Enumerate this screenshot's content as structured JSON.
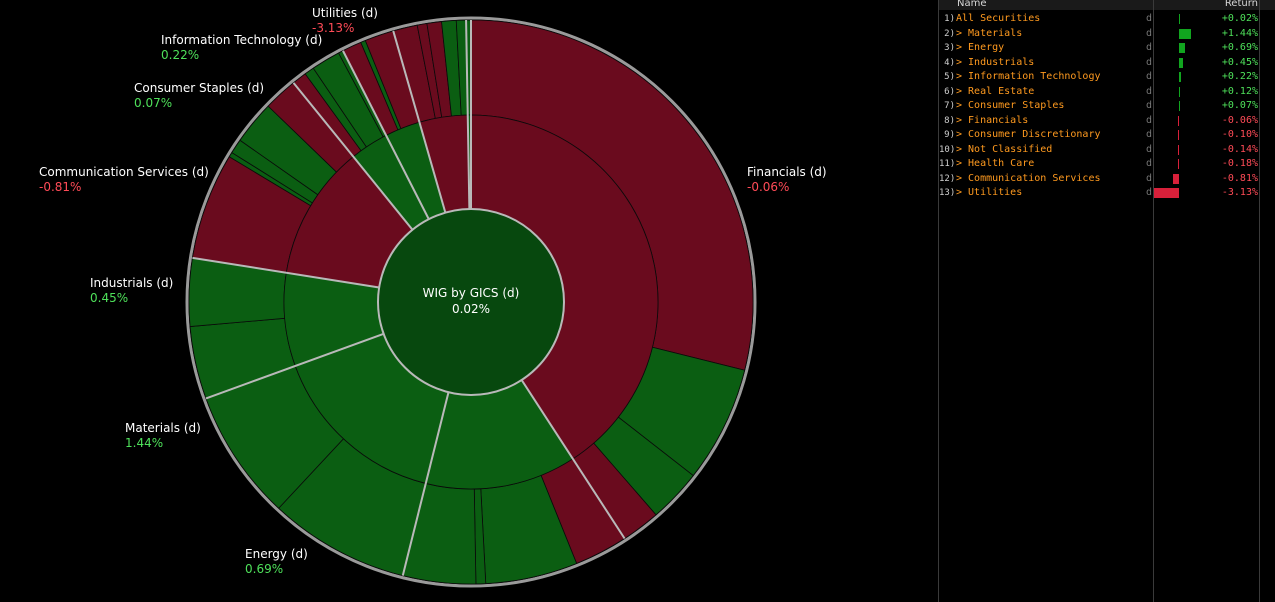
{
  "chart_data": {
    "type": "sunburst",
    "center": {
      "name": "WIG by GICS (d)",
      "value": "0.02%"
    },
    "sectors": [
      {
        "name": "Financials (d)",
        "value": "-0.06%"
      },
      {
        "name": "Utilities (d)",
        "value": "-3.13%"
      },
      {
        "name": "Information Technology (d)",
        "value": "0.22%"
      },
      {
        "name": "Consumer Staples (d)",
        "value": "0.07%"
      },
      {
        "name": "Communication Services (d)",
        "value": "-0.81%"
      },
      {
        "name": "Industrials (d)",
        "value": "0.45%"
      },
      {
        "name": "Materials (d)",
        "value": "1.44%"
      },
      {
        "name": "Energy (d)",
        "value": "0.69%"
      }
    ]
  },
  "table": {
    "header_name": "Name",
    "header_return": "Return",
    "flag": "d",
    "rows": [
      {
        "idx": "1)",
        "label": "All Securities",
        "value": "+0.02%",
        "num": 0.02
      },
      {
        "idx": "2)",
        "label": "> Materials",
        "value": "+1.44%",
        "num": 1.44
      },
      {
        "idx": "3)",
        "label": "> Energy",
        "value": "+0.69%",
        "num": 0.69
      },
      {
        "idx": "4)",
        "label": "> Industrials",
        "value": "+0.45%",
        "num": 0.45
      },
      {
        "idx": "5)",
        "label": "> Information Technology",
        "value": "+0.22%",
        "num": 0.22
      },
      {
        "idx": "6)",
        "label": "> Real Estate",
        "value": "+0.12%",
        "num": 0.12
      },
      {
        "idx": "7)",
        "label": "> Consumer Staples",
        "value": "+0.07%",
        "num": 0.07
      },
      {
        "idx": "8)",
        "label": "> Financials",
        "value": "-0.06%",
        "num": -0.06
      },
      {
        "idx": "9)",
        "label": "> Consumer Discretionary",
        "value": "-0.10%",
        "num": -0.1
      },
      {
        "idx": "10)",
        "label": "> Not Classified",
        "value": "-0.14%",
        "num": -0.14
      },
      {
        "idx": "11)",
        "label": "> Health Care",
        "value": "-0.18%",
        "num": -0.18
      },
      {
        "idx": "12)",
        "label": "> Communication Services",
        "value": "-0.81%",
        "num": -0.81
      },
      {
        "idx": "13)",
        "label": "> Utilities",
        "value": "-3.13%",
        "num": -3.13
      }
    ]
  },
  "colors": {
    "positive": "#0b5e12",
    "positive_text": "#4ee05a",
    "negative": "#6a0b1e",
    "negative_text": "#ff4b57",
    "accent_label": "#ff9a1f",
    "bar_positive": "#11a51f",
    "bar_negative": "#d8203a"
  }
}
